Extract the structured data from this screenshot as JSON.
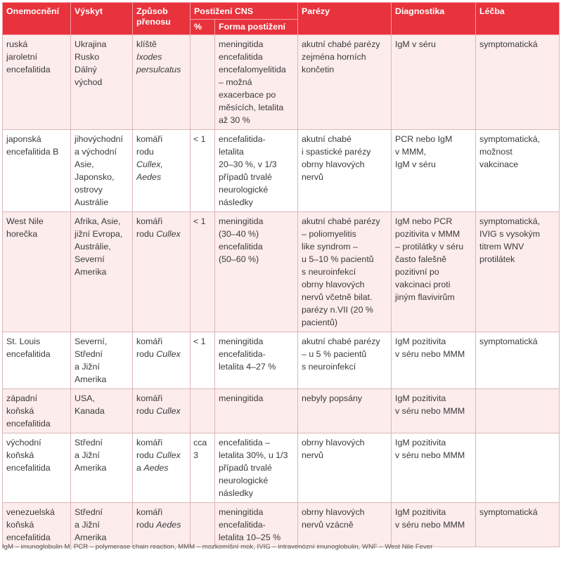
{
  "headers": {
    "disease": "Onemocnění",
    "occurrence": "Výskyt",
    "transmission_1": "Způsob",
    "transmission_2": "přenosu",
    "cns": "Postižení  CNS",
    "pct": "%",
    "form": "Forma postižení",
    "paresis": "Parézy",
    "diagnostics": "Diagnostika",
    "treatment": "Léčba"
  },
  "rows": [
    {
      "disease": [
        "ruská",
        "jaroletní",
        "encefalitida"
      ],
      "occurrence": [
        "Ukrajina",
        "Rusko",
        "Dálný",
        "východ"
      ],
      "transmission": [
        [
          {
            "t": "klíště",
            "i": false
          }
        ],
        [
          {
            "t": "Ixodes",
            "i": true
          }
        ],
        [
          {
            "t": "persulcatus",
            "i": true
          }
        ]
      ],
      "pct": [],
      "form": [
        "meningitida",
        "encefalitida",
        "encefalomyelitida",
        "– možná",
        "exacerbace po",
        "měsících, letalita",
        "až 30 %"
      ],
      "paresis": [
        "akutní chabé parézy",
        "zejména horních",
        "končetin"
      ],
      "diagnostics": [
        "IgM v séru"
      ],
      "treatment": [
        "symptomatická"
      ]
    },
    {
      "disease": [
        "japonská",
        "encefalitida B"
      ],
      "occurrence": [
        "jihovýchodní",
        "a východní",
        "Asie,",
        "Japonsko,",
        "ostrovy",
        "Austrálie"
      ],
      "transmission": [
        [
          {
            "t": "komáři",
            "i": false
          }
        ],
        [
          {
            "t": "rodu",
            "i": false
          }
        ],
        [
          {
            "t": "Cullex,",
            "i": true
          }
        ],
        [
          {
            "t": "Aedes",
            "i": true
          }
        ]
      ],
      "pct": [
        "< 1"
      ],
      "form": [
        "encefalitida-",
        "letalita",
        "20–30 %, v 1/3",
        "případů trvalé",
        "neurologické",
        "následky"
      ],
      "paresis": [
        "akutní chabé",
        "i spastické parézy",
        "obrny hlavových",
        "nervů"
      ],
      "diagnostics": [
        "PCR nebo IgM",
        "v MMM,",
        "IgM v séru"
      ],
      "treatment": [
        "symptomatická,",
        "možnost",
        "vakcinace"
      ]
    },
    {
      "disease": [
        "West Nile",
        "horečka"
      ],
      "occurrence": [
        "Afrika, Asie,",
        "jižní Evropa,",
        "Austrálie,",
        "Severní",
        "Amerika"
      ],
      "transmission": [
        [
          {
            "t": "komáři",
            "i": false
          }
        ],
        [
          {
            "t": "rodu ",
            "i": false
          },
          {
            "t": "Cullex",
            "i": true
          }
        ]
      ],
      "pct": [
        "< 1"
      ],
      "form": [
        "meningitida",
        "(30–40 %)",
        "encefalitida",
        "(50–60 %)"
      ],
      "paresis": [
        "akutní chabé parézy",
        "– poliomyelitis",
        "like syndrom –",
        "u 5–10 % pacientů",
        "s neuroinfekcí",
        "obrny hlavových",
        "nervů včetně bilat.",
        "parézy n.VII (20 %",
        "pacientů)"
      ],
      "diagnostics": [
        "IgM nebo PCR",
        "pozitivita v MMM",
        "– protilátky v séru",
        "často falešně",
        "pozitivní po",
        "vakcinaci proti",
        "jiným flavivirům"
      ],
      "treatment": [
        "symptomatická,",
        "IVIG s vysokým",
        "titrem WNV",
        "protilátek"
      ]
    },
    {
      "disease": [
        "St. Louis",
        "encefalitida"
      ],
      "occurrence": [
        "Severní,",
        "Střední",
        "a Jižní",
        "Amerika"
      ],
      "transmission": [
        [
          {
            "t": "komáři",
            "i": false
          }
        ],
        [
          {
            "t": "rodu ",
            "i": false
          },
          {
            "t": "Cullex",
            "i": true
          }
        ]
      ],
      "pct": [
        "< 1"
      ],
      "form": [
        "meningitida",
        "encefalitida-",
        "letalita 4–27 %"
      ],
      "paresis": [
        "akutní chabé parézy",
        "– u 5 % pacientů",
        "s neuroinfekcí"
      ],
      "diagnostics": [
        "IgM pozitivita",
        "v séru nebo MMM"
      ],
      "treatment": [
        "symptomatická"
      ]
    },
    {
      "disease": [
        "západní",
        "koňská",
        "encefalitida"
      ],
      "occurrence": [
        "USA,",
        "Kanada"
      ],
      "transmission": [
        [
          {
            "t": "komáři",
            "i": false
          }
        ],
        [
          {
            "t": "rodu ",
            "i": false
          },
          {
            "t": "Cullex",
            "i": true
          }
        ]
      ],
      "pct": [],
      "form": [
        "meningitida"
      ],
      "paresis": [
        "nebyly popsány"
      ],
      "diagnostics": [
        "IgM pozitivita",
        "v séru nebo MMM"
      ],
      "treatment": []
    },
    {
      "disease": [
        "východní",
        "koňská",
        "encefalitida"
      ],
      "occurrence": [
        "Střední",
        "a Jižní",
        "Amerika"
      ],
      "transmission": [
        [
          {
            "t": "komáři",
            "i": false
          }
        ],
        [
          {
            "t": "rodu ",
            "i": false
          },
          {
            "t": "Cullex",
            "i": true
          }
        ],
        [
          {
            "t": "a ",
            "i": false
          },
          {
            "t": "Aedes",
            "i": true
          }
        ]
      ],
      "pct": [
        "cca",
        "3"
      ],
      "form": [
        "encefalitida –",
        "letalita 30%, u 1/3",
        "případů trvalé",
        "neurologické",
        "následky"
      ],
      "paresis": [
        "obrny hlavových",
        "nervů"
      ],
      "diagnostics": [
        "IgM pozitivita",
        "v séru nebo MMM"
      ],
      "treatment": []
    },
    {
      "disease": [
        "venezuelská",
        "koňská",
        "encefalitida"
      ],
      "occurrence": [
        "Střední",
        "a Jižní",
        "Amerika"
      ],
      "transmission": [
        [
          {
            "t": "komáři",
            "i": false
          }
        ],
        [
          {
            "t": "rodu ",
            "i": false
          },
          {
            "t": "Aedes",
            "i": true
          }
        ]
      ],
      "pct": [],
      "form": [
        "meningitida",
        "encefalitida-",
        "letalita 10–25 %"
      ],
      "paresis": [
        "obrny hlavových",
        "nervů vzácně"
      ],
      "diagnostics": [
        "IgM pozitivita",
        "v séru nebo MMM"
      ],
      "treatment": [
        "symptomatická"
      ]
    }
  ],
  "footnote": "IgM – imunoglobulin M, PCR – polymerase chain reaction, MMM – mozkomíšní mok, IVIG – intravenózní imunoglobulin, WNF – West Nile Fever"
}
